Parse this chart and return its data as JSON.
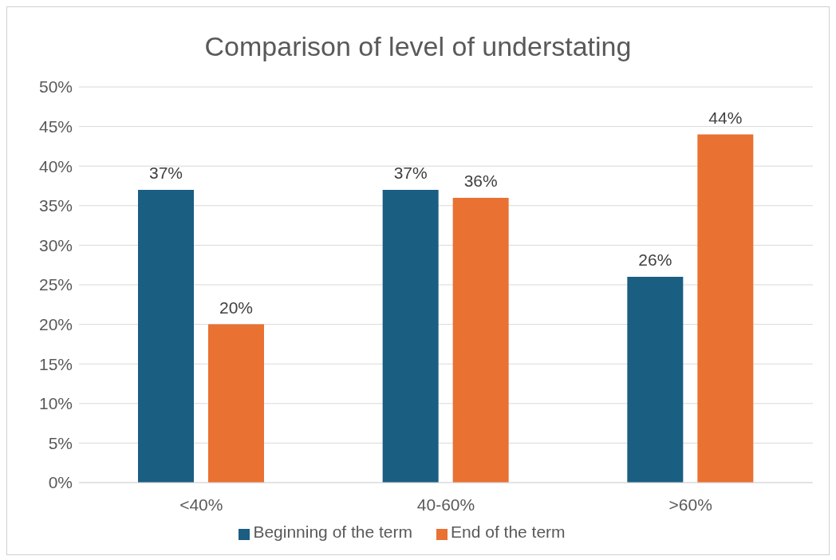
{
  "chart_data": {
    "type": "bar",
    "title": "Comparison of level of understating",
    "categories": [
      "<40%",
      "40-60%",
      ">60%"
    ],
    "series": [
      {
        "name": "Beginning of the term",
        "color": "#1a5e82",
        "values": [
          37,
          37,
          26
        ],
        "value_labels": [
          "37%",
          "37%",
          "26%"
        ]
      },
      {
        "name": "End of the term",
        "color": "#e97132",
        "values": [
          20,
          36,
          44
        ],
        "value_labels": [
          "20%",
          "36%",
          "44%"
        ]
      }
    ],
    "ylim": [
      0,
      50
    ],
    "yticks": [
      {
        "value": 0,
        "label": "0%"
      },
      {
        "value": 5,
        "label": "5%"
      },
      {
        "value": 10,
        "label": "10%"
      },
      {
        "value": 15,
        "label": "15%"
      },
      {
        "value": 20,
        "label": "20%"
      },
      {
        "value": 25,
        "label": "25%"
      },
      {
        "value": 30,
        "label": "30%"
      },
      {
        "value": 35,
        "label": "35%"
      },
      {
        "value": 40,
        "label": "40%"
      },
      {
        "value": 45,
        "label": "45%"
      },
      {
        "value": 50,
        "label": "50%"
      }
    ],
    "grid": "y",
    "legend": "bottom"
  }
}
